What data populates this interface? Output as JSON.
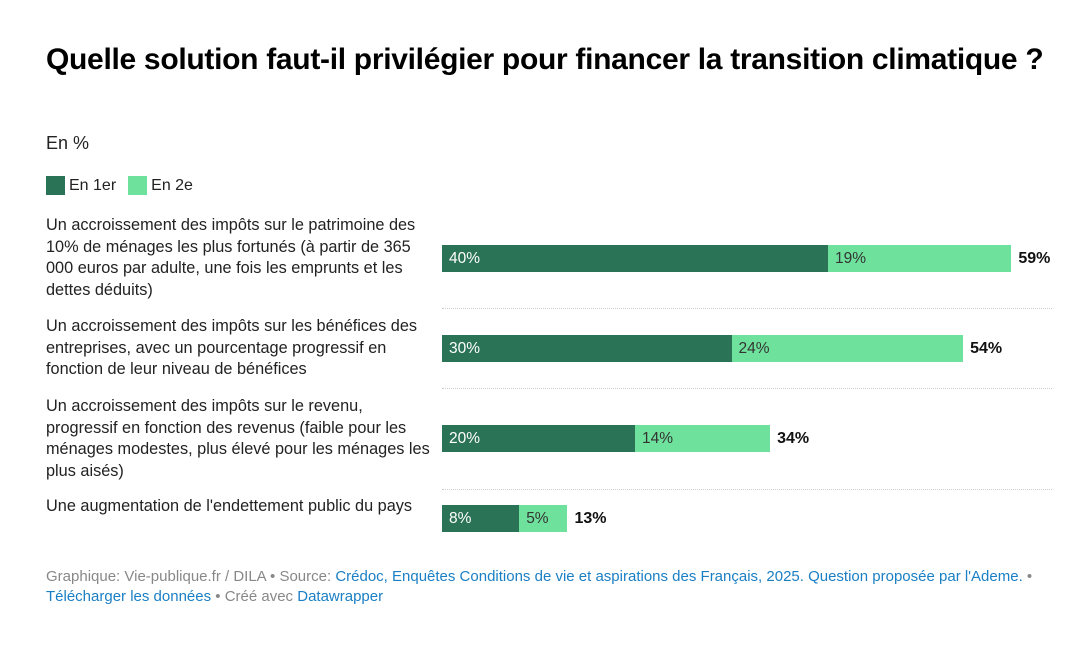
{
  "header": {
    "title": "Quelle solution faut-il privilégier pour financer la transition climatique ?",
    "subtitle": "En %"
  },
  "legend": [
    {
      "label": "En 1er",
      "color": "#2a7356"
    },
    {
      "label": "En 2e",
      "color": "#6ee29c"
    }
  ],
  "footer": {
    "prefix": "Graphique: Vie-publique.fr / DILA • Source: ",
    "source_link": "Crédoc, Enquêtes Conditions de vie et aspirations des Français, 2025. Question proposée par l'Ademe.",
    "sep1": " • ",
    "download_link": "Télécharger les données",
    "sep2": " • Créé avec ",
    "tool_link": "Datawrapper"
  },
  "chart_data": {
    "type": "bar",
    "orientation": "horizontal",
    "stacked": true,
    "title": "Quelle solution faut-il privilégier pour financer la transition climatique ?",
    "subtitle": "En %",
    "unit": "%",
    "legend_position": "top-left",
    "grid": false,
    "xlim": [
      0,
      63
    ],
    "categories": [
      "Un accroissement des impôts sur le patrimoine des 10% de ménages les plus fortunés (à partir de 365 000 euros par adulte, une fois les emprunts et les dettes déduits)",
      "Un accroissement des impôts sur les bénéfices des entreprises, avec un pourcentage progressif en fonction de leur niveau de bénéfices",
      "Un accroissement des impôts sur le revenu, progressif en fonction des revenus (faible pour les ménages modestes, plus élevé pour les ménages les plus aisés)",
      "Une augmentation de l'endettement public du pays"
    ],
    "series": [
      {
        "name": "En 1er",
        "values": [
          40,
          30,
          20,
          8
        ],
        "color": "#2a7356",
        "label_color": "#ffffff"
      },
      {
        "name": "En 2e",
        "values": [
          19,
          24,
          14,
          5
        ],
        "color": "#6ee29c",
        "label_color": "#333333"
      }
    ],
    "totals": [
      59,
      54,
      34,
      13
    ]
  }
}
